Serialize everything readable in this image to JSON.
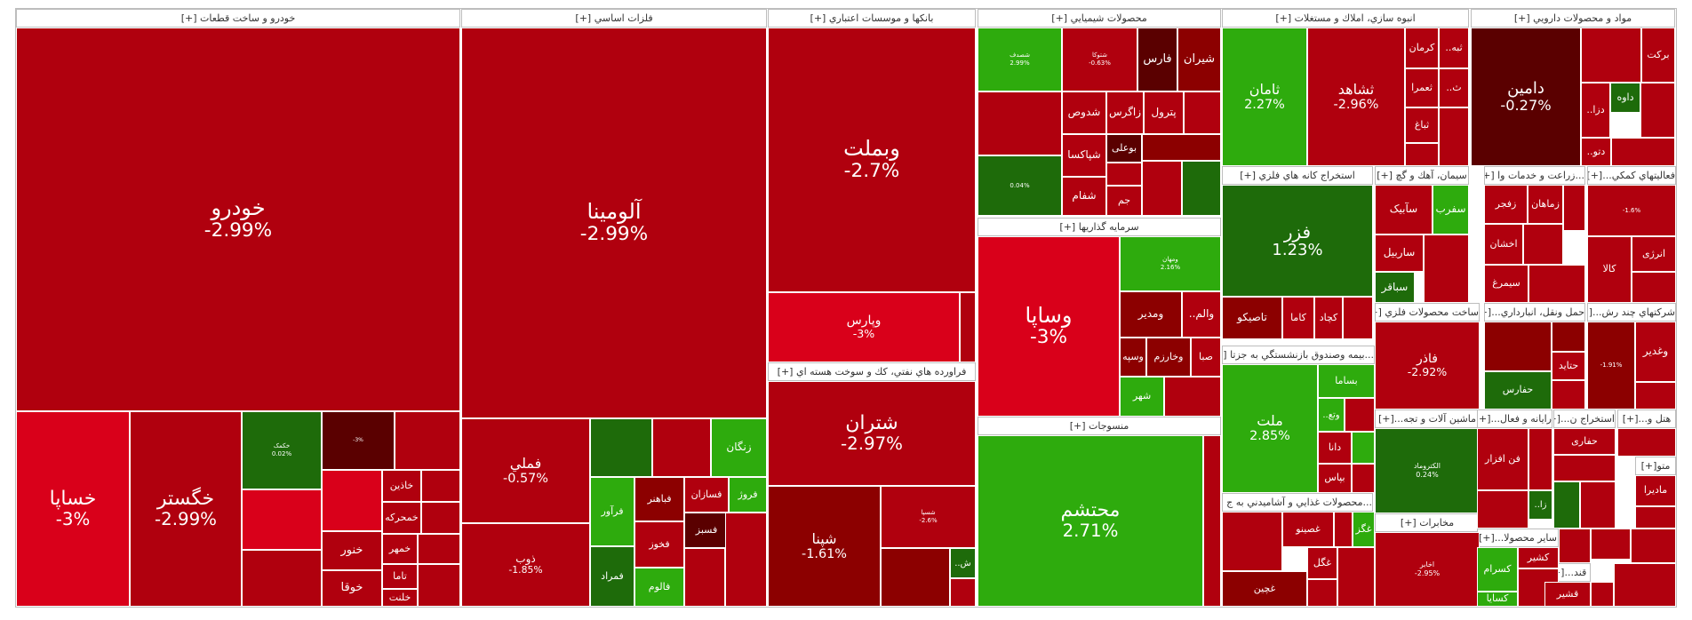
{
  "chart_data": {
    "type": "treemap",
    "colors": {
      "dark_green": "#1e6b0a",
      "green": "#2eab0d",
      "dark_red": "#8c0000",
      "red": "#b0000e",
      "bright_red": "#d9001a",
      "deep_maroon": "#5a0000"
    },
    "sectors": [
      {
        "name": "خودرو و ساخت قطعات [+]",
        "tiles": [
          {
            "symbol": "خودرو",
            "change": "-2.99%"
          },
          {
            "symbol": "خساپا",
            "change": "-3%"
          },
          {
            "symbol": "خگستر",
            "change": "-2.99%"
          },
          {
            "symbol": "خکمک",
            "change": "0.02%"
          },
          {
            "symbol": "",
            "change": "-3%"
          },
          {
            "symbol": "خاذین",
            "change": ""
          },
          {
            "symbol": "خمحرکه",
            "change": ""
          },
          {
            "symbol": "خنور",
            "change": ""
          },
          {
            "symbol": "خمهر",
            "change": ""
          },
          {
            "symbol": "خوقا",
            "change": ""
          },
          {
            "symbol": "تاما",
            "change": ""
          },
          {
            "symbol": "خلنت",
            "change": ""
          }
        ]
      },
      {
        "name": "فلزات اساسي [+]",
        "tiles": [
          {
            "symbol": "آلومینا",
            "change": "-2.99%"
          },
          {
            "symbol": "فملي",
            "change": "-0.57%"
          },
          {
            "symbol": "ذوب",
            "change": "-1.85%"
          },
          {
            "symbol": "زنگان",
            "change": ""
          },
          {
            "symbol": "فروژ",
            "change": ""
          },
          {
            "symbol": "فسازان",
            "change": ""
          },
          {
            "symbol": "فباهنر",
            "change": ""
          },
          {
            "symbol": "فرآور",
            "change": ""
          },
          {
            "symbol": "فخوز",
            "change": ""
          },
          {
            "symbol": "فسبز",
            "change": ""
          },
          {
            "symbol": "فمراد",
            "change": ""
          },
          {
            "symbol": "فالوم",
            "change": ""
          }
        ]
      },
      {
        "name": "بانكها و موسسات اعتباري [+]",
        "tiles": [
          {
            "symbol": "وبملت",
            "change": "-2.7%"
          },
          {
            "symbol": "وپارس",
            "change": "-3%"
          }
        ]
      },
      {
        "name": "فراورده هاي نفتي، كك و سوخت هسته اي [+]",
        "tiles": [
          {
            "symbol": "شتران",
            "change": "-2.97%"
          },
          {
            "symbol": "شپنا",
            "change": "-1.61%"
          },
          {
            "symbol": "شسپا",
            "change": "-2.6%"
          },
          {
            "symbol": "ش..",
            "change": ""
          }
        ]
      },
      {
        "name": "محصولات شيميايي [+]",
        "tiles": [
          {
            "symbol": "شیران",
            "change": ""
          },
          {
            "symbol": "فارس",
            "change": ""
          },
          {
            "symbol": "شتوکا",
            "change": "-0.63%"
          },
          {
            "symbol": "شصدف",
            "change": "2.99%"
          },
          {
            "symbol": "پترول",
            "change": ""
          },
          {
            "symbol": "زاگرس",
            "change": ""
          },
          {
            "symbol": "شدوص",
            "change": ""
          },
          {
            "symbol": "شپاکسا",
            "change": ""
          },
          {
            "symbol": "شفام",
            "change": ""
          },
          {
            "symbol": "جم",
            "change": ""
          },
          {
            "symbol": "بوعلی",
            "change": ""
          },
          {
            "symbol": "",
            "change": "0.04%"
          }
        ]
      },
      {
        "name": "سرمايه گذاريها [+]",
        "tiles": [
          {
            "symbol": "وساپا",
            "change": "-3%"
          },
          {
            "symbol": "ومهان",
            "change": "2.16%"
          },
          {
            "symbol": "ومدير",
            "change": ""
          },
          {
            "symbol": "والم..",
            "change": ""
          },
          {
            "symbol": "صبا",
            "change": ""
          },
          {
            "symbol": "وخارزم",
            "change": ""
          },
          {
            "symbol": "وسپه",
            "change": ""
          },
          {
            "symbol": "شهر",
            "change": ""
          }
        ]
      },
      {
        "name": "منسوجات [+]",
        "tiles": [
          {
            "symbol": "محتشم",
            "change": "2.71%"
          }
        ]
      },
      {
        "name": "انبوه سازي، املاك و مستغلات [+]",
        "tiles": [
          {
            "symbol": "ثامان",
            "change": "2.27%"
          },
          {
            "symbol": "ثشاهد",
            "change": "-2.96%"
          },
          {
            "symbol": "کرمان",
            "change": ""
          },
          {
            "symbol": "ثبه..",
            "change": ""
          },
          {
            "symbol": "ثعمرا",
            "change": ""
          },
          {
            "symbol": "ث..",
            "change": ""
          },
          {
            "symbol": "ثباغ",
            "change": ""
          }
        ]
      },
      {
        "name": "مواد و محصولات دارويي [+]",
        "tiles": [
          {
            "symbol": "دامین",
            "change": "-0.27%"
          },
          {
            "symbol": "برکت",
            "change": ""
          },
          {
            "symbol": "داوه",
            "change": ""
          },
          {
            "symbol": "دزا..",
            "change": ""
          },
          {
            "symbol": "دتو..",
            "change": ""
          }
        ]
      },
      {
        "name": "استخراج كانه هاي فلزي [+]",
        "tiles": [
          {
            "symbol": "فزر",
            "change": "1.23%"
          },
          {
            "symbol": "تاصیکو",
            "change": ""
          },
          {
            "symbol": "کاما",
            "change": ""
          },
          {
            "symbol": "کچاد",
            "change": ""
          }
        ]
      },
      {
        "name": "سيمان، آهك و گچ [+]",
        "tiles": [
          {
            "symbol": "سفرب",
            "change": ""
          },
          {
            "symbol": "سآبیک",
            "change": ""
          },
          {
            "symbol": "ساربیل",
            "change": ""
          },
          {
            "symbol": "سباقر",
            "change": ""
          }
        ]
      },
      {
        "name": "...زراعت و خدمات وا [+]",
        "tiles": [
          {
            "symbol": "زماهان",
            "change": ""
          },
          {
            "symbol": "زفجر",
            "change": ""
          },
          {
            "symbol": "اخشان",
            "change": ""
          },
          {
            "symbol": "سیمرغ",
            "change": ""
          }
        ]
      },
      {
        "name": "فعاليتهاي كمكي...[+]",
        "tiles": [
          {
            "symbol": "",
            "change": "-1.6%"
          },
          {
            "symbol": "انرژی",
            "change": ""
          },
          {
            "symbol": "کالا",
            "change": ""
          }
        ]
      },
      {
        "name": "...بيمه وصندوق بازنشستگي به جزتا [+]",
        "tiles": [
          {
            "symbol": "ملت",
            "change": "2.85%"
          },
          {
            "symbol": "بساما",
            "change": ""
          },
          {
            "symbol": "وتع..",
            "change": ""
          },
          {
            "symbol": "دانا",
            "change": ""
          },
          {
            "symbol": "بپاس",
            "change": ""
          }
        ]
      },
      {
        "name": "ساخت محصولات فلزي [+]",
        "tiles": [
          {
            "symbol": "فاذر",
            "change": "-2.92%"
          }
        ]
      },
      {
        "name": "حمل ونقل، انبارداري...[+]",
        "tiles": [
          {
            "symbol": "حفارس",
            "change": ""
          },
          {
            "symbol": "حتاید",
            "change": ""
          }
        ]
      },
      {
        "name": "شركتهاي چند رش...[+]",
        "tiles": [
          {
            "symbol": "وغدیر",
            "change": ""
          },
          {
            "symbol": "",
            "change": "-1.91%"
          }
        ]
      },
      {
        "name": "...محصولات غذايي و آشاميدني به ج [+]",
        "tiles": [
          {
            "symbol": "غچین",
            "change": ""
          },
          {
            "symbol": "غصینو",
            "change": ""
          },
          {
            "symbol": "غگل",
            "change": ""
          },
          {
            "symbol": "غگز",
            "change": ""
          }
        ]
      },
      {
        "name": "ماشين آلات و تجه...[+]",
        "tiles": [
          {
            "symbol": "الکتروماد",
            "change": "0.24%"
          }
        ]
      },
      {
        "name": "مخابرات [+]",
        "tiles": [
          {
            "symbol": "اخابر",
            "change": "-2.95%"
          }
        ]
      },
      {
        "name": "رايانه و فعال...[+]",
        "tiles": [
          {
            "symbol": "فن افزار",
            "change": ""
          },
          {
            "symbol": "زا..",
            "change": ""
          }
        ]
      },
      {
        "name": "استخراج ن...[+]",
        "tiles": [
          {
            "symbol": "حفاری",
            "change": ""
          }
        ]
      },
      {
        "name": "هتل و...[+]",
        "tiles": []
      },
      {
        "name": "سایر محصولا...[+]",
        "tiles": [
          {
            "symbol": "کشیر",
            "change": ""
          },
          {
            "symbol": "کسرام",
            "change": ""
          },
          {
            "symbol": "کسایا",
            "change": ""
          }
        ]
      },
      {
        "name": "متو[+]",
        "tiles": [
          {
            "symbol": "مادیرا",
            "change": ""
          }
        ]
      },
      {
        "name": "قند...[+]",
        "tiles": [
          {
            "symbol": "قشیر",
            "change": ""
          }
        ]
      }
    ]
  }
}
